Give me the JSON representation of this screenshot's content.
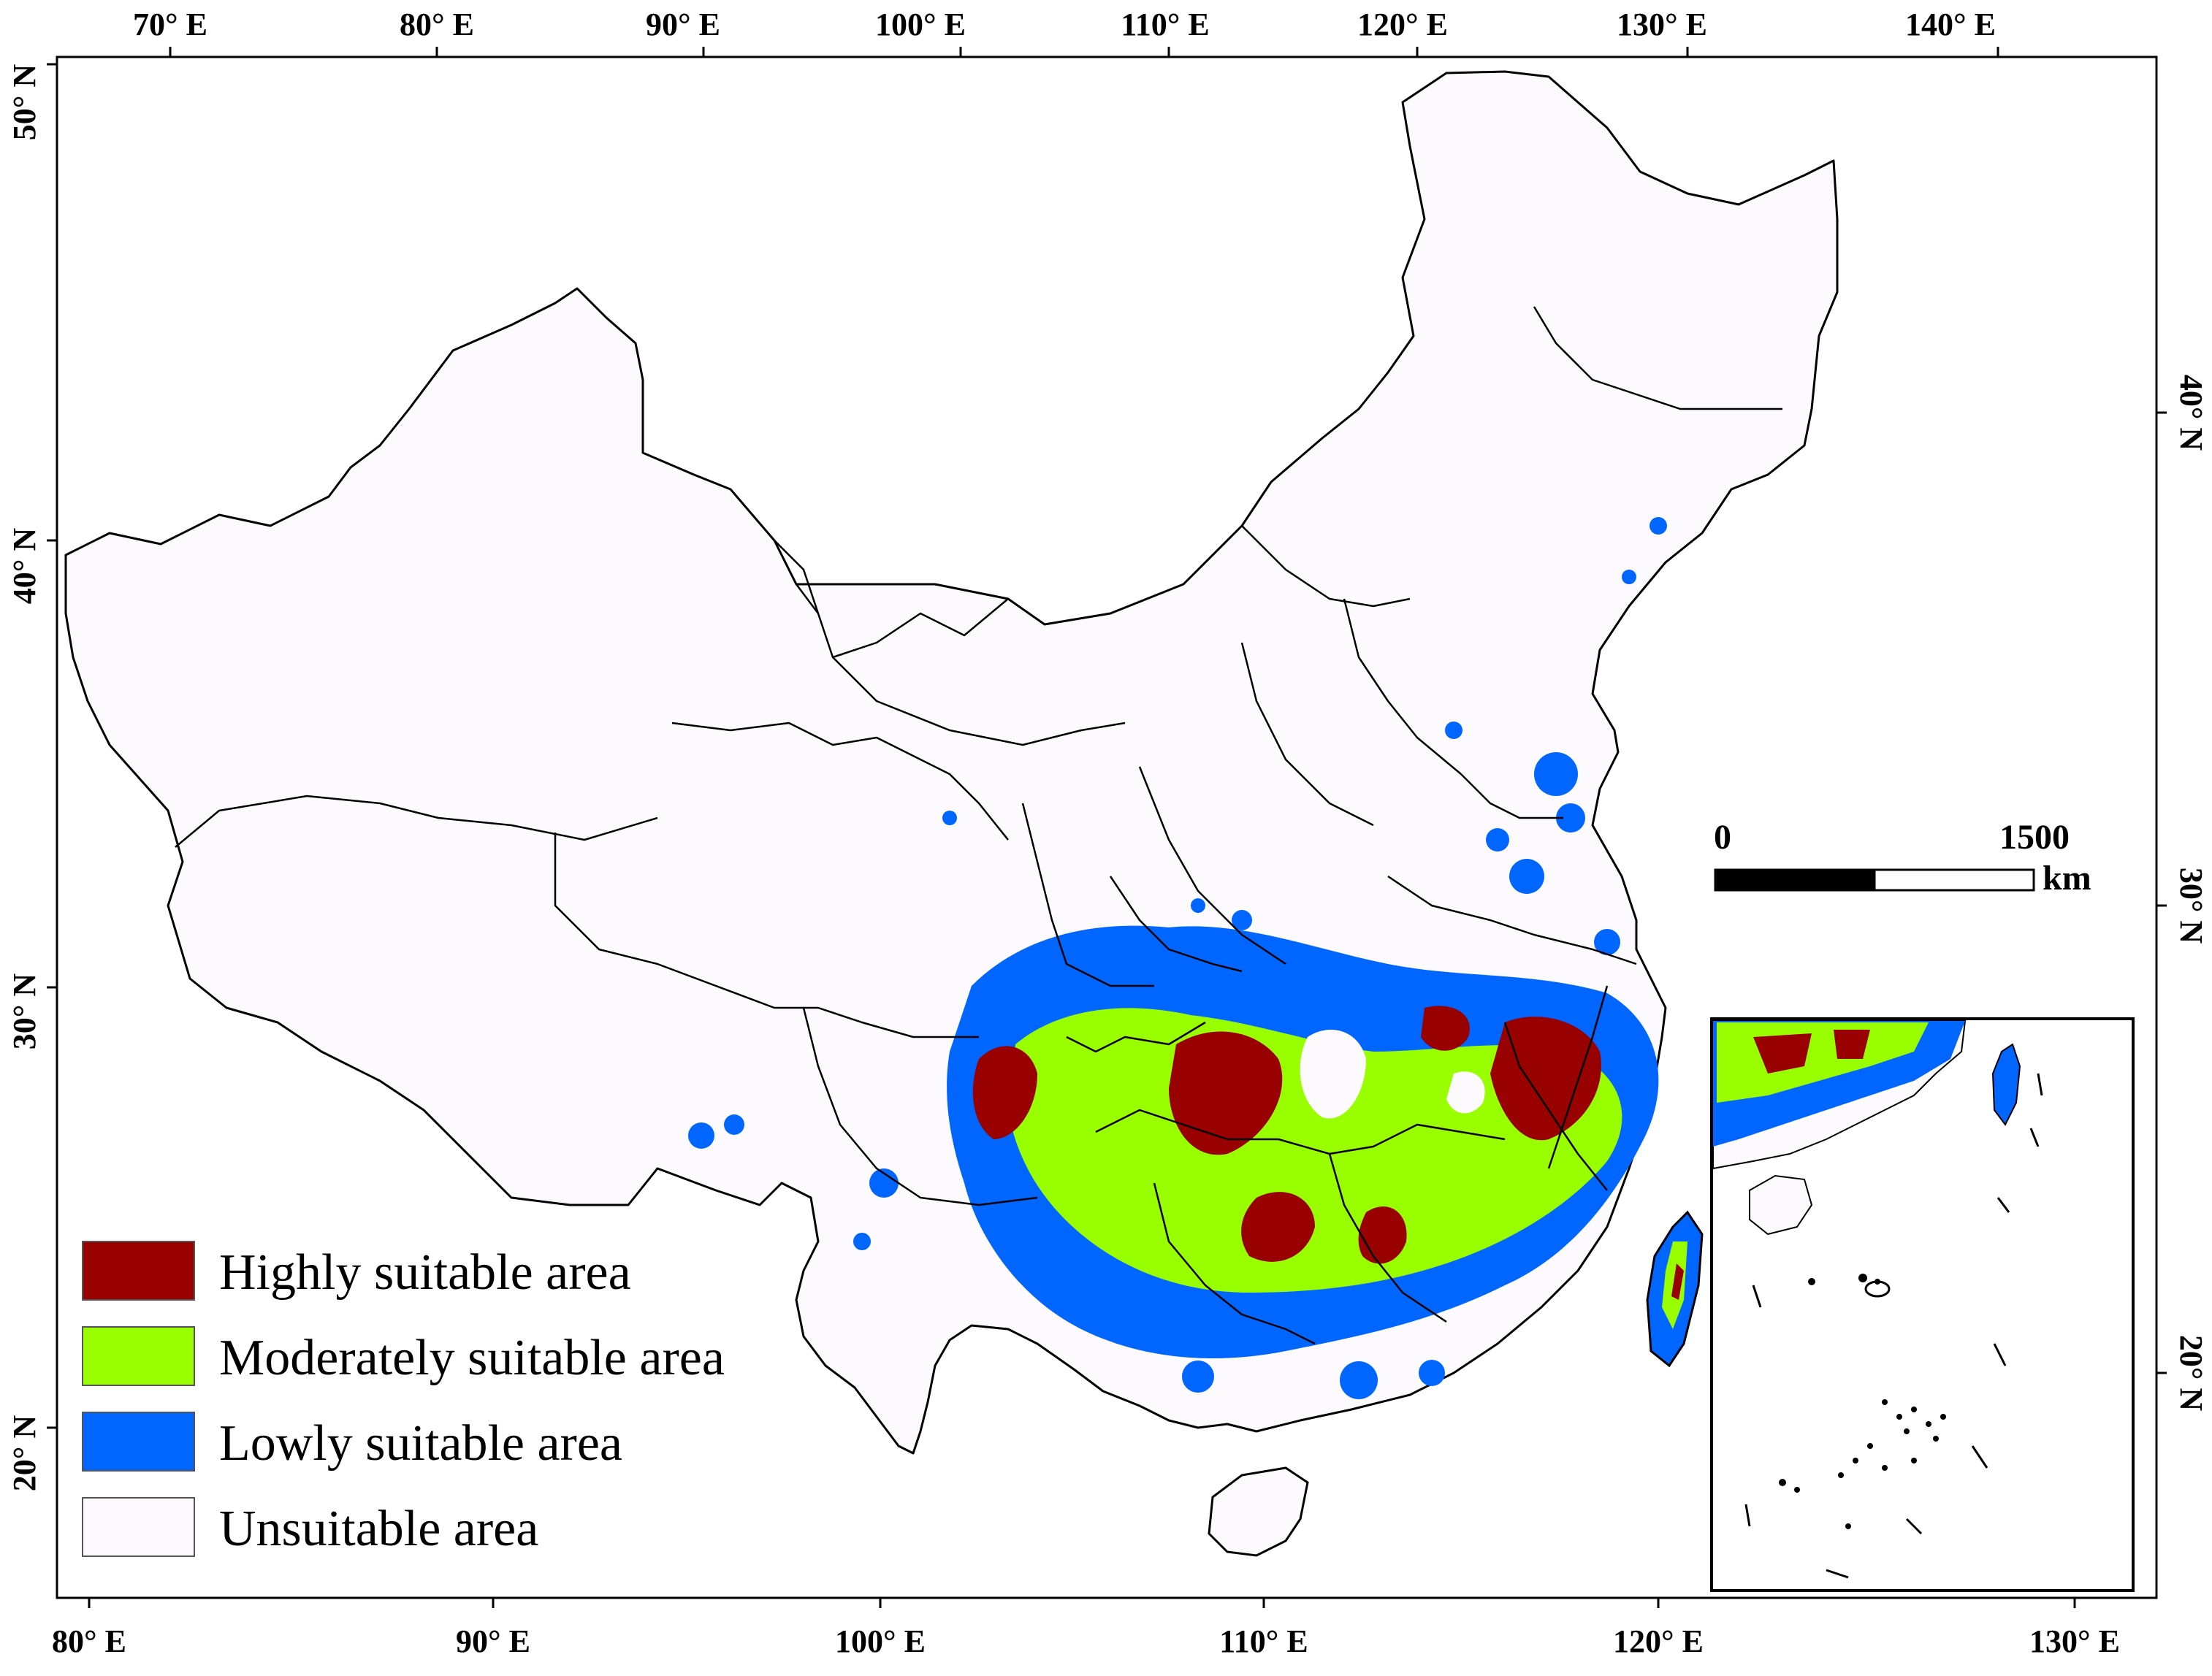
{
  "map": {
    "top_lon_labels": [
      "70° E",
      "80° E",
      "90° E",
      "100° E",
      "110° E",
      "120° E",
      "130° E",
      "140° E"
    ],
    "bottom_lon_labels": [
      "80° E",
      "90° E",
      "100° E",
      "110° E",
      "120° E",
      "130° E"
    ],
    "left_lat_labels": [
      "50° N",
      "40° N",
      "30° N",
      "20° N"
    ],
    "right_lat_labels": [
      "40° N",
      "30° N",
      "20° N"
    ]
  },
  "legend": {
    "items": [
      {
        "label": "Highly suitable area",
        "color": "#990000"
      },
      {
        "label": "Moderately suitable area",
        "color": "#99ff00"
      },
      {
        "label": "Lowly suitable area",
        "color": "#0066ff"
      },
      {
        "label": "Unsuitable area",
        "color": "#fdfafd"
      }
    ]
  },
  "scale_bar": {
    "start_label": "0",
    "end_label": "1500",
    "unit": "km"
  },
  "colors": {
    "land": "#fdfafd",
    "border": "#000000",
    "high": "#990000",
    "moderate": "#99ff00",
    "low": "#0066ff"
  }
}
